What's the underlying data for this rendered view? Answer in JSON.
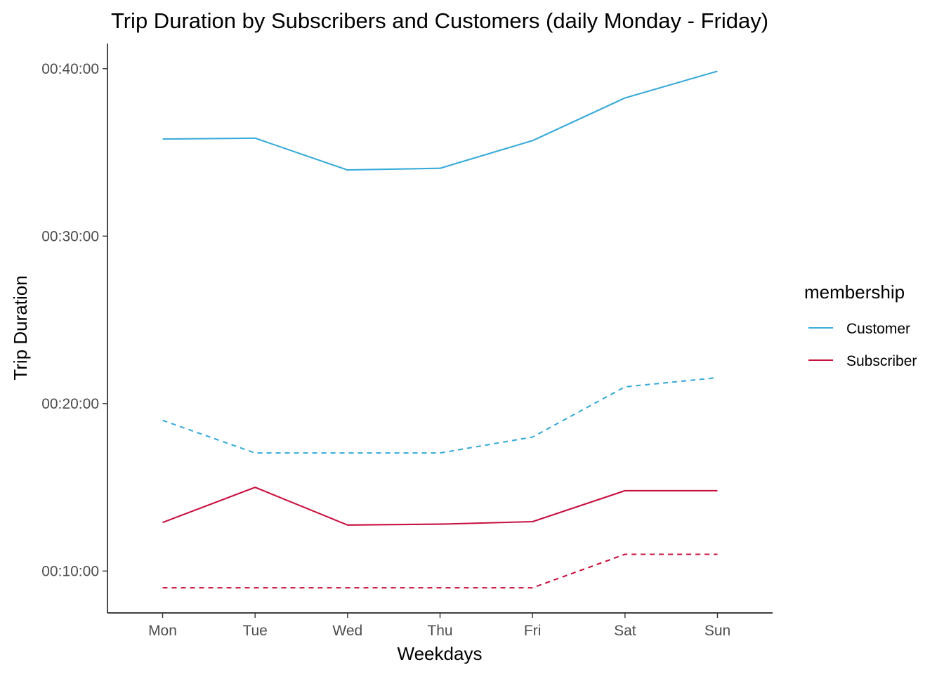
{
  "chart_data": {
    "type": "line",
    "title": "Trip Duration by Subscribers and Customers (daily Monday - Friday)",
    "xlabel": "Weekdays",
    "ylabel": "Trip Duration",
    "categories": [
      "Mon",
      "Tue",
      "Wed",
      "Thu",
      "Fri",
      "Sat",
      "Sun"
    ],
    "y_unit": "minutes",
    "ylim": [
      7.5,
      41.5
    ],
    "y_ticks": [
      10,
      20,
      30,
      40
    ],
    "y_tick_labels": [
      "00:10:00",
      "00:20:00",
      "00:30:00",
      "00:40:00"
    ],
    "grid": false,
    "legend": {
      "title": "membership",
      "position": "right",
      "entries": [
        {
          "label": "Customer",
          "color": "#3AABD9"
        },
        {
          "label": "Subscriber",
          "color": "#C8103E"
        }
      ]
    },
    "series": [
      {
        "membership": "Customer",
        "linetype": "solid",
        "color": "#3AABD9",
        "values": [
          35.8,
          35.85,
          33.95,
          34.05,
          35.7,
          38.25,
          39.85
        ]
      },
      {
        "membership": "Customer",
        "linetype": "dashed",
        "color": "#3AABD9",
        "values": [
          19.0,
          17.05,
          17.05,
          17.05,
          18.0,
          21.0,
          21.55
        ]
      },
      {
        "membership": "Subscriber",
        "linetype": "solid",
        "color": "#C8103E",
        "values": [
          12.9,
          15.0,
          12.75,
          12.8,
          12.95,
          14.8,
          14.8
        ]
      },
      {
        "membership": "Subscriber",
        "linetype": "dashed",
        "color": "#C8103E",
        "values": [
          9.0,
          9.0,
          9.0,
          9.0,
          9.0,
          11.0,
          11.0
        ]
      }
    ]
  }
}
